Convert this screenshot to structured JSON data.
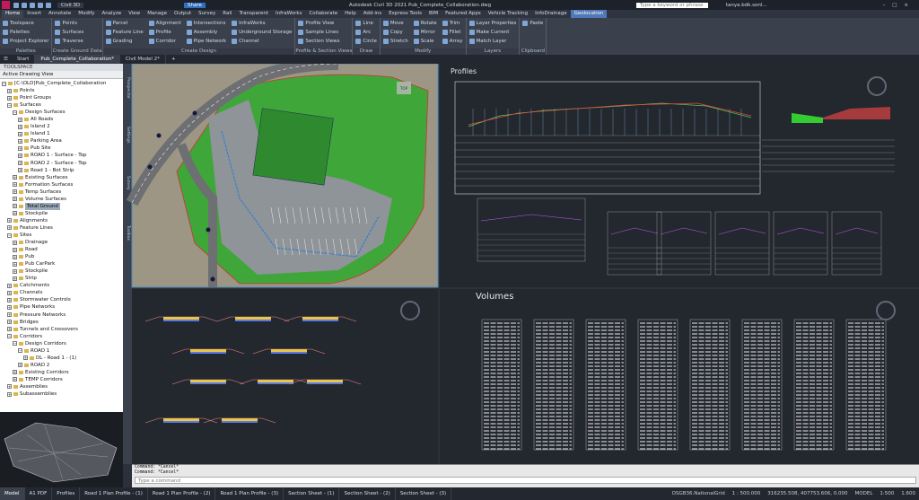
{
  "title_bar": {
    "app_title": "Autodesk Civil 3D 2021   Pub_Complete_Collaboration.dwg",
    "share": "Share",
    "workspace": "Civil 3D",
    "search": "Type a keyword or phrase",
    "user": "tanya.bdk.sonl..."
  },
  "ribbon": {
    "tabs": [
      "Home",
      "Insert",
      "Annotate",
      "Modify",
      "Analyze",
      "View",
      "Manage",
      "Output",
      "Survey",
      "Rail",
      "Transparent",
      "InfraWorks",
      "Collaborate",
      "Help",
      "Add-ins",
      "Express Tools",
      "BIM",
      "Featured Apps",
      "Vehicle Tracking",
      "InfoDrainage",
      "Geolocation"
    ],
    "panels": [
      {
        "title": "Palettes",
        "buttons": [
          "Toolspace",
          "Palettes",
          "Project Explorer"
        ]
      },
      {
        "title": "Create Ground Data",
        "buttons": [
          "Points",
          "Surfaces",
          "Traverse"
        ]
      },
      {
        "title": "Create Design",
        "buttons": [
          "Parcel",
          "Feature Line",
          "Grading",
          "Alignment",
          "Profile",
          "Corridor",
          "Intersections",
          "Assembly",
          "Pipe Network",
          "InfraWorks",
          "Underground Storage",
          "Channel"
        ]
      },
      {
        "title": "Profile & Section Views",
        "buttons": [
          "Profile View",
          "Sample Lines",
          "Section Views"
        ]
      },
      {
        "title": "Draw",
        "buttons": [
          "Line",
          "Arc",
          "Circle"
        ]
      },
      {
        "title": "Modify",
        "buttons": [
          "Move",
          "Copy",
          "Stretch",
          "Rotate",
          "Mirror",
          "Scale",
          "Trim",
          "Fillet",
          "Array"
        ]
      },
      {
        "title": "Layers",
        "buttons": [
          "Layer Properties",
          "Make Current",
          "Match Layer"
        ]
      },
      {
        "title": "Clipboard",
        "buttons": [
          "Paste"
        ]
      }
    ]
  },
  "doc_tabs": [
    "Start",
    "Pub_Complete_Collaboration*",
    "Civil Model 2*"
  ],
  "toolspace": {
    "title": "TOOLSPACE",
    "view": "Active Drawing View",
    "side_tabs": [
      "Prospector",
      "Settings",
      "Survey",
      "Toolbox"
    ],
    "tree": [
      {
        "label": "[C:\\OLD]Pub_Complete_Collaboration",
        "children": [
          {
            "label": "Points"
          },
          {
            "label": "Point Groups"
          },
          {
            "label": "Surfaces",
            "children": [
              {
                "label": "Design Surfaces",
                "children": [
                  {
                    "label": "All Roads"
                  },
                  {
                    "label": "Island 2"
                  },
                  {
                    "label": "Island 1"
                  },
                  {
                    "label": "Parking Area"
                  },
                  {
                    "label": "Pub Site"
                  },
                  {
                    "label": "ROAD 1 - Surface - Top"
                  },
                  {
                    "label": "ROAD 2 - Surface - Top"
                  },
                  {
                    "label": "Road 1 - Bot Strip"
                  }
                ]
              },
              {
                "label": "Existing Surfaces"
              },
              {
                "label": "Formation Surfaces"
              },
              {
                "label": "Temp Surfaces"
              },
              {
                "label": "Volume Surfaces"
              },
              {
                "label": "Total Ground",
                "selected": true
              },
              {
                "label": "Stockpile"
              }
            ]
          },
          {
            "label": "Alignments"
          },
          {
            "label": "Feature Lines"
          },
          {
            "label": "Sites",
            "children": [
              {
                "label": "Drainage"
              },
              {
                "label": "Road"
              },
              {
                "label": "Pub"
              },
              {
                "label": "Pub CarPark"
              },
              {
                "label": "Stockpile"
              },
              {
                "label": "Strip"
              }
            ]
          },
          {
            "label": "Catchments"
          },
          {
            "label": "Channels"
          },
          {
            "label": "Stormwater Controls"
          },
          {
            "label": "Pipe Networks"
          },
          {
            "label": "Pressure Networks"
          },
          {
            "label": "Bridges"
          },
          {
            "label": "Tunnels and Crossovers"
          },
          {
            "label": "Corridors",
            "children": [
              {
                "label": "Design Corridors",
                "children": [
                  {
                    "label": "ROAD 1",
                    "children": [
                      {
                        "label": "DL - Road 1 - (1)"
                      }
                    ]
                  },
                  {
                    "label": "ROAD 2"
                  }
                ]
              },
              {
                "label": "Existing Corridors"
              },
              {
                "label": "TEMP Corridors"
              }
            ]
          },
          {
            "label": "Assemblies"
          },
          {
            "label": "Subassemblies"
          }
        ]
      }
    ]
  },
  "viewports": {
    "profiles": "Profiles",
    "volumes": "Volumes",
    "view_cube": "TOP"
  },
  "command": {
    "history": [
      "Command: *Cancel*",
      "Command: *Cancel*"
    ],
    "prompt": "Type a command"
  },
  "status_bar": {
    "layout_tabs": [
      "Model",
      "A1 PDF",
      "Profiles",
      "Road 1 Plan Profile - (1)",
      "Road 1 Plan Profile - (2)",
      "Road 1 Plan Profile - (3)",
      "Section Sheet - (1)",
      "Section Sheet - (2)",
      "Section Sheet - (3)"
    ],
    "coordinate_system": "OSGB36.NationalGrid",
    "scale": "1 : 500.000",
    "coordinates": "316235.508, 407753.606, 0.000",
    "space": "MODEL",
    "annotation_scale": "1:500",
    "elevation": "1.600"
  }
}
